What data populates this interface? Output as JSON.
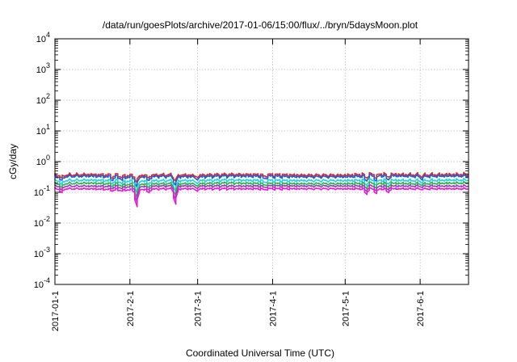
{
  "chart_data": {
    "type": "line",
    "title": "/data/run/goesPlots/archive/2017-01-06/15:00/flux/../bryn/5daysMoon.plot",
    "xlabel": "Coordinated Universal Time (UTC)",
    "ylabel": "cGy/day",
    "yscale": "log",
    "ylim": [
      0.0001,
      10000
    ],
    "xlim": [
      "2017-01-01",
      "2017-06-21"
    ],
    "grid": true,
    "legend": "none",
    "y_ticks": [
      {
        "base": "10",
        "exp": "-4"
      },
      {
        "base": "10",
        "exp": "-3"
      },
      {
        "base": "10",
        "exp": "-2"
      },
      {
        "base": "10",
        "exp": "-1"
      },
      {
        "base": "10",
        "exp": "0"
      },
      {
        "base": "10",
        "exp": "1"
      },
      {
        "base": "10",
        "exp": "2"
      },
      {
        "base": "10",
        "exp": "3"
      },
      {
        "base": "10",
        "exp": "4"
      }
    ],
    "x_ticks": [
      "2017-01-1",
      "2017-2-1",
      "2017-3-1",
      "2017-4-1",
      "2017-5-1",
      "2017-6-1"
    ],
    "x": [
      "2017-01-01",
      "2017-01-15",
      "2017-02-01",
      "2017-02-15",
      "2017-03-01",
      "2017-03-15",
      "2017-04-01",
      "2017-04-15",
      "2017-05-01",
      "2017-05-15",
      "2017-06-01",
      "2017-06-15"
    ],
    "series": [
      {
        "color": "#e6262a",
        "values": [
          0.36,
          0.38,
          0.35,
          0.37,
          0.36,
          0.38,
          0.37,
          0.36,
          0.36,
          0.39,
          0.37,
          0.38
        ]
      },
      {
        "color": "#1f5cd6",
        "values": [
          0.32,
          0.34,
          0.31,
          0.33,
          0.32,
          0.34,
          0.33,
          0.32,
          0.32,
          0.35,
          0.33,
          0.34
        ]
      },
      {
        "color": "#22d3e0",
        "values": [
          0.24,
          0.25,
          0.23,
          0.24,
          0.24,
          0.25,
          0.24,
          0.24,
          0.24,
          0.25,
          0.24,
          0.25
        ]
      },
      {
        "color": "#2db34a",
        "values": [
          0.19,
          0.2,
          0.18,
          0.19,
          0.19,
          0.2,
          0.19,
          0.19,
          0.19,
          0.2,
          0.19,
          0.2
        ]
      },
      {
        "color": "#9a3fbf",
        "values": [
          0.16,
          0.16,
          0.15,
          0.16,
          0.16,
          0.16,
          0.16,
          0.16,
          0.16,
          0.16,
          0.16,
          0.16
        ]
      },
      {
        "color": "#ee19d8",
        "values": [
          0.13,
          0.13,
          0.12,
          0.13,
          0.13,
          0.13,
          0.13,
          0.13,
          0.13,
          0.13,
          0.13,
          0.13
        ]
      }
    ],
    "dips": [
      {
        "date": "2017-01-04",
        "value": 0.08
      },
      {
        "date": "2017-01-25",
        "value": 0.09
      },
      {
        "date": "2017-01-29",
        "value": 0.09
      },
      {
        "date": "2017-02-04",
        "value": 0.028
      },
      {
        "date": "2017-02-09",
        "value": 0.08
      },
      {
        "date": "2017-02-20",
        "value": 0.034
      },
      {
        "date": "2017-03-01",
        "value": 0.09
      },
      {
        "date": "2017-03-29",
        "value": 0.1
      },
      {
        "date": "2017-05-10",
        "value": 0.07
      },
      {
        "date": "2017-05-14",
        "value": 0.075
      },
      {
        "date": "2017-05-19",
        "value": 0.08
      },
      {
        "date": "2017-06-02",
        "value": 0.1
      }
    ]
  }
}
